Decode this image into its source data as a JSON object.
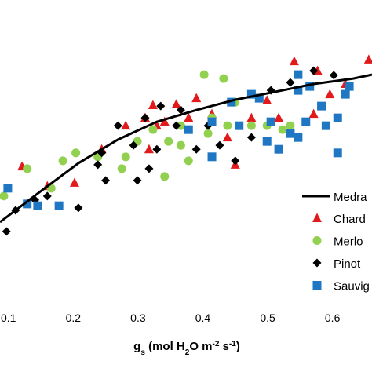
{
  "chart_data": {
    "type": "scatter",
    "x_label": [
      {
        "text": "g"
      },
      {
        "text": "s",
        "sub": true
      },
      {
        "text": " (mol H"
      },
      {
        "text": "2",
        "sub": true
      },
      {
        "text": "O m"
      },
      {
        "text": "-2",
        "sup": true
      },
      {
        "text": " s"
      },
      {
        "text": "-1",
        "sup": true
      },
      {
        "text": ")"
      }
    ],
    "xlim": [
      0.087,
      0.661
    ],
    "ylim": [
      0,
      100
    ],
    "xticks": [
      0.1,
      0.2,
      0.3,
      0.4,
      0.5,
      0.6
    ],
    "line": {
      "name": "Medra",
      "color": "#000000",
      "x": [
        0.087,
        0.148,
        0.208,
        0.269,
        0.329,
        0.39,
        0.45,
        0.511,
        0.571,
        0.632,
        0.661
      ],
      "y": [
        26.5,
        36.4,
        46.0,
        53.8,
        59.7,
        63.6,
        67.0,
        69.6,
        72.2,
        74.0,
        75.3
      ]
    },
    "series": [
      {
        "name": "Chard",
        "color": "#e31a1c",
        "marker": "triangle",
        "x": [
          0.121,
          0.16,
          0.202,
          0.244,
          0.281,
          0.311,
          0.323,
          0.329,
          0.359,
          0.378,
          0.414,
          0.438,
          0.45,
          0.475,
          0.499,
          0.517,
          0.541,
          0.577,
          0.571,
          0.596,
          0.62,
          0.656,
          0.317,
          0.341,
          0.39
        ],
        "y": [
          44.9,
          38.4,
          39.5,
          50.6,
          58.4,
          61.0,
          65.2,
          58.4,
          65.5,
          61.0,
          62.3,
          54.5,
          45.5,
          61.0,
          66.8,
          61.0,
          79.7,
          76.6,
          62.3,
          68.8,
          72.2,
          80.3,
          50.6,
          59.7,
          67.5
        ]
      },
      {
        "name": "Merlo",
        "color": "#92d050",
        "marker": "circle",
        "x": [
          0.093,
          0.129,
          0.166,
          0.184,
          0.204,
          0.238,
          0.275,
          0.281,
          0.299,
          0.323,
          0.341,
          0.347,
          0.366,
          0.378,
          0.402,
          0.408,
          0.432,
          0.438,
          0.45,
          0.475,
          0.499,
          0.523,
          0.535,
          0.366,
          0.414
        ],
        "y": [
          35.1,
          44.2,
          37.7,
          46.8,
          49.4,
          48.1,
          44.2,
          48.1,
          53.2,
          57.1,
          41.6,
          53.2,
          58.4,
          46.8,
          75.3,
          55.8,
          74.0,
          58.4,
          66.2,
          58.4,
          58.4,
          57.1,
          58.4,
          51.9,
          61.0
        ]
      },
      {
        "name": "Pinot",
        "color": "#000000",
        "marker": "diamond",
        "x": [
          0.097,
          0.111,
          0.141,
          0.16,
          0.208,
          0.238,
          0.244,
          0.25,
          0.269,
          0.293,
          0.299,
          0.311,
          0.317,
          0.329,
          0.335,
          0.359,
          0.366,
          0.39,
          0.408,
          0.426,
          0.45,
          0.475,
          0.505,
          0.535,
          0.571,
          0.602
        ],
        "y": [
          23.4,
          30.4,
          33.8,
          35.1,
          31.2,
          45.5,
          49.4,
          40.3,
          58.4,
          51.9,
          40.3,
          61.0,
          44.2,
          50.6,
          64.9,
          58.4,
          63.6,
          50.6,
          58.4,
          51.9,
          46.8,
          54.5,
          70.1,
          72.7,
          76.6,
          75.1
        ]
      },
      {
        "name": "Sauvig",
        "color": "#1f77c4",
        "marker": "square",
        "x": [
          0.099,
          0.129,
          0.145,
          0.178,
          0.378,
          0.414,
          0.414,
          0.444,
          0.456,
          0.475,
          0.487,
          0.499,
          0.505,
          0.517,
          0.535,
          0.547,
          0.547,
          0.547,
          0.559,
          0.583,
          0.59,
          0.608,
          0.62,
          0.626,
          0.608,
          0.565
        ],
        "y": [
          37.7,
          32.5,
          31.9,
          31.9,
          57.1,
          59.7,
          48.1,
          66.2,
          58.4,
          68.8,
          67.5,
          53.2,
          59.7,
          50.6,
          55.8,
          75.3,
          70.1,
          54.5,
          59.7,
          64.9,
          58.4,
          61.0,
          68.8,
          71.4,
          49.4,
          71.4
        ]
      }
    ]
  }
}
